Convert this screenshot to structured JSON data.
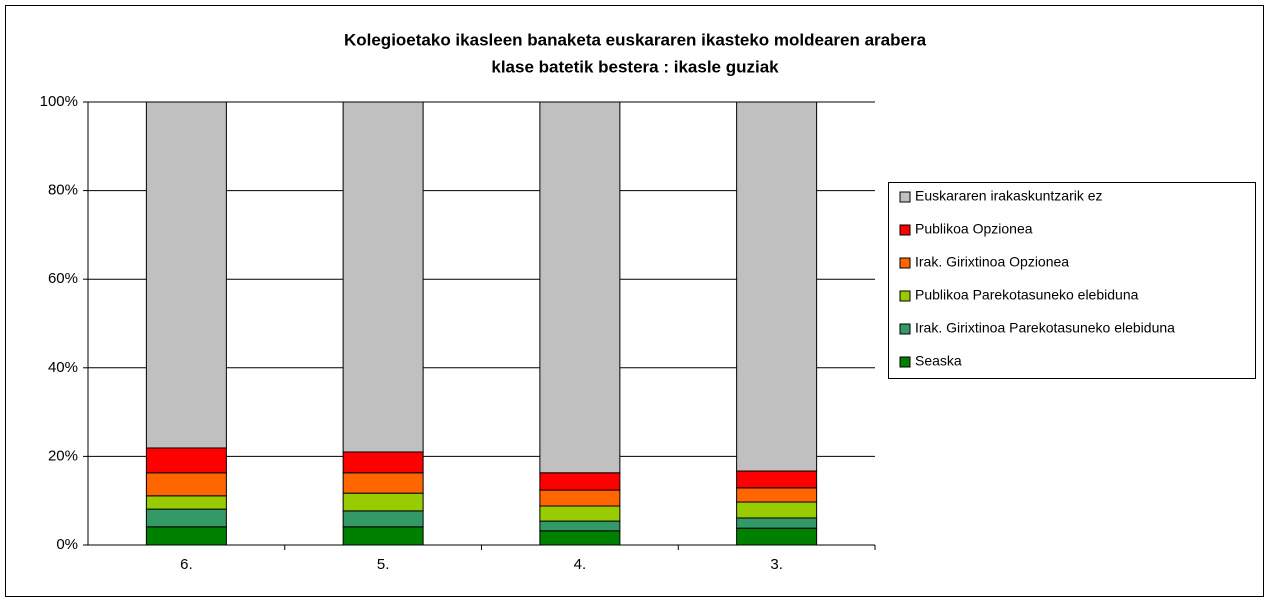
{
  "chart_data": {
    "type": "stacked_bar",
    "title": "Kolegioetako ikasleen banaketa euskararen ikasteko moldearen arabera",
    "subtitle": "klase batetik bestera  : ikasle guziak",
    "categories": [
      "6.",
      "5.",
      "4.",
      "3."
    ],
    "series": [
      {
        "name": "Seaska",
        "color": "#008000",
        "values": [
          4.1,
          4.1,
          3.2,
          3.8
        ]
      },
      {
        "name": "Irak. Girixtinoa Parekotasuneko elebiduna",
        "color": "#339966",
        "values": [
          4.0,
          3.6,
          2.2,
          2.3
        ]
      },
      {
        "name": "Publikoa Parekotasuneko elebiduna",
        "color": "#99cc00",
        "values": [
          3.0,
          4.0,
          3.4,
          3.6
        ]
      },
      {
        "name": "Irak. Girixtinoa Opzionea",
        "color": "#ff6600",
        "values": [
          5.2,
          4.6,
          3.6,
          3.2
        ]
      },
      {
        "name": "Publikoa Opzionea",
        "color": "#ff0000",
        "values": [
          5.6,
          4.7,
          3.9,
          3.8
        ]
      },
      {
        "name": "Euskararen irakaskuntzarik ez",
        "color": "#c0c0c0",
        "values": [
          78.1,
          79.0,
          83.7,
          83.3
        ]
      }
    ],
    "ylim": [
      0,
      100
    ],
    "yticks": [
      {
        "value": 0,
        "label": "0%"
      },
      {
        "value": 20,
        "label": "20%"
      },
      {
        "value": 40,
        "label": "40%"
      },
      {
        "value": 60,
        "label": "60%"
      },
      {
        "value": 80,
        "label": "80%"
      },
      {
        "value": 100,
        "label": "100%"
      }
    ],
    "grid": true,
    "legend": "right"
  }
}
